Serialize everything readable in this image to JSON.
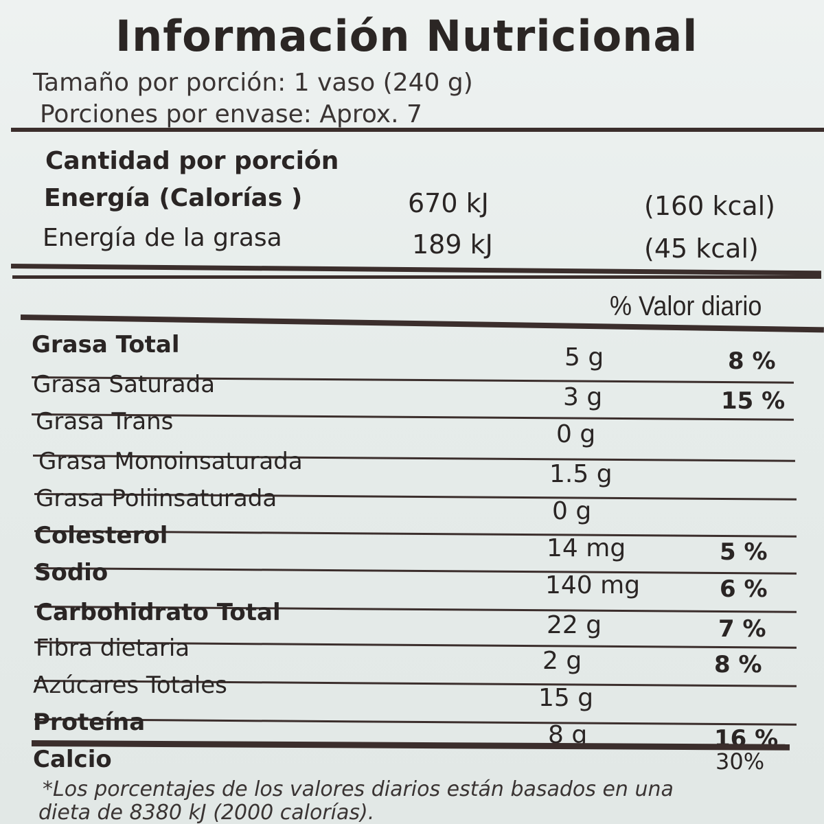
{
  "title": "Información Nutricional",
  "serving_size": "Tamaño por porción: 1 vaso (240 g)",
  "servings_per_container": "Porciones por envase: Aprox. 7",
  "amount_per_serving": "Cantidad por porción",
  "energy": {
    "label": "Energía  (Calorías )",
    "kj": "670 kJ",
    "kcal": "(160 kcal)"
  },
  "energy_fat": {
    "label": "Energía de la grasa",
    "kj": "189 kJ",
    "kcal": "(45 kcal)"
  },
  "daily_value_header": "% Valor diario",
  "nutrients": [
    {
      "name": "Grasa Total",
      "amount": "5 g",
      "dv": "8 %"
    },
    {
      "name": "Grasa Saturada",
      "amount": "3 g",
      "dv": "15 %"
    },
    {
      "name": "Grasa Trans",
      "amount": "0 g",
      "dv": ""
    },
    {
      "name": "Grasa Monoinsaturada",
      "amount": "1.5 g",
      "dv": ""
    },
    {
      "name": "Grasa Poliinsaturada",
      "amount": "0 g",
      "dv": ""
    },
    {
      "name": "Colesterol",
      "amount": "14 mg",
      "dv": "5 %"
    },
    {
      "name": "Sodio",
      "amount": "140 mg",
      "dv": "6 %"
    },
    {
      "name": "Carbohidrato Total",
      "amount": "22 g",
      "dv": "7 %"
    },
    {
      "name": "Fibra dietaria",
      "amount": "2 g",
      "dv": "8 %"
    },
    {
      "name": "Azúcares Totales",
      "amount": "15 g",
      "dv": ""
    },
    {
      "name": "Proteína",
      "amount": "8 g",
      "dv": "16 %"
    }
  ],
  "calcium": {
    "name": "Calcio",
    "dv": "30%"
  },
  "footnote_line1": "*Los porcentajes de los valores diarios están basados en una",
  "footnote_line2": "dieta de 8380 kJ (2000 calorías)."
}
